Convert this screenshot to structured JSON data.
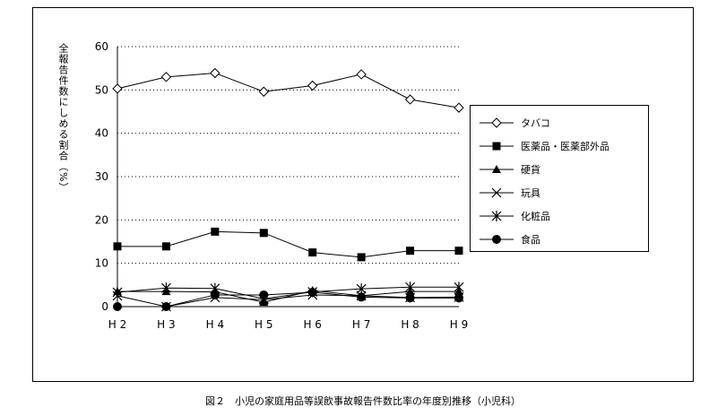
{
  "chart_data": {
    "type": "line",
    "ylabel": "全報告件数にしめる割合（%）",
    "categories": [
      "H 2",
      "H 3",
      "H 4",
      "H 5",
      "H 6",
      "H 7",
      "H 8",
      "H 9"
    ],
    "ylim": [
      0,
      60
    ],
    "yticks": [
      0,
      10,
      20,
      30,
      40,
      50,
      60
    ],
    "grid": "horizontal dotted",
    "legend_position": "right",
    "series": [
      {
        "name": "タバコ",
        "marker": "diamond-open",
        "values": [
          50.3,
          53.0,
          53.9,
          49.6,
          51.0,
          53.6,
          47.8,
          45.9
        ]
      },
      {
        "name": "医薬品・医薬部外品",
        "marker": "square-filled",
        "values": [
          13.9,
          13.9,
          17.3,
          17.0,
          12.5,
          11.4,
          12.9,
          12.9
        ]
      },
      {
        "name": "硬貨",
        "marker": "triangle-filled",
        "values": [
          3.5,
          3.5,
          3.4,
          1.0,
          3.7,
          2.5,
          3.5,
          3.5
        ]
      },
      {
        "name": "玩具",
        "marker": "x",
        "values": [
          2.5,
          0.0,
          2.1,
          1.6,
          2.7,
          2.5,
          2.1,
          2.2
        ]
      },
      {
        "name": "化粧品",
        "marker": "asterisk",
        "values": [
          3.3,
          4.3,
          4.2,
          1.8,
          3.4,
          4.1,
          4.5,
          4.5
        ]
      },
      {
        "name": "食品",
        "marker": "circle-filled",
        "values": [
          0.0,
          0.0,
          2.7,
          2.7,
          3.3,
          2.2,
          2.0,
          2.0
        ]
      }
    ]
  },
  "caption": "図２　小児の家庭用品等誤飲事故報告件数比率の年度別推移（小児科）"
}
